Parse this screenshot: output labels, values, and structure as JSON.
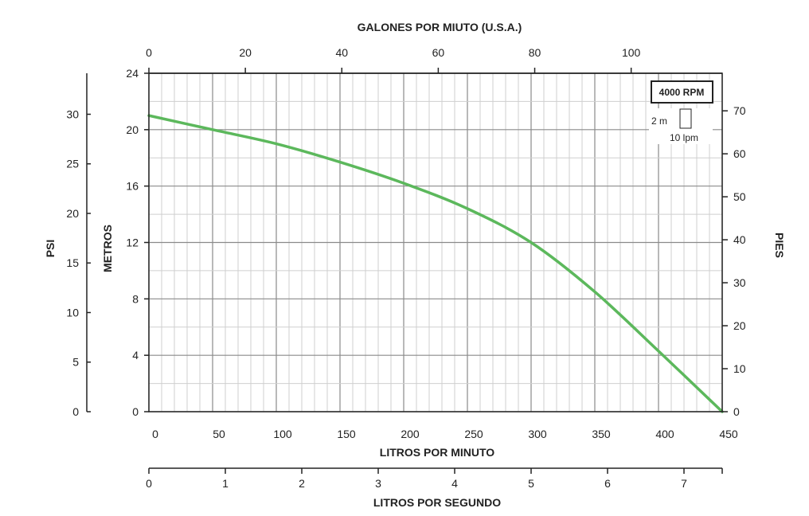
{
  "chart_data": {
    "type": "line",
    "speed_label": "4000 RPM",
    "scale_legend": {
      "vertical": "2 m",
      "horizontal": "10 lpm"
    },
    "x_primary": {
      "label": "LITROS POR MINUTO",
      "ticks": [
        0,
        50,
        100,
        150,
        200,
        250,
        300,
        350,
        400,
        450
      ],
      "range": [
        0,
        450
      ]
    },
    "x_top": {
      "label": "GALONES POR MIUTO (U.S.A.)",
      "ticks": [
        0,
        20,
        40,
        60,
        80,
        100
      ]
    },
    "x_bottom": {
      "label": "LITROS POR SEGUNDO",
      "ticks": [
        0,
        1,
        2,
        3,
        4,
        5,
        6,
        7
      ]
    },
    "y_primary": {
      "label": "METROS",
      "ticks": [
        0,
        4,
        8,
        12,
        16,
        20,
        24
      ],
      "range": [
        0,
        24
      ]
    },
    "y_left": {
      "label": "PSI",
      "ticks": [
        0,
        5,
        10,
        15,
        20,
        25,
        30
      ]
    },
    "y_right": {
      "label": "PIES",
      "ticks": [
        0,
        10,
        20,
        30,
        40,
        50,
        60,
        70
      ]
    },
    "grid": true,
    "series": [
      {
        "color": "#5cb85c",
        "x": [
          0,
          50,
          100,
          150,
          200,
          250,
          300,
          350,
          400,
          450
        ],
        "y": [
          21.0,
          20.0,
          19.0,
          17.7,
          16.2,
          14.4,
          12.0,
          8.5,
          4.3,
          0
        ]
      }
    ]
  }
}
